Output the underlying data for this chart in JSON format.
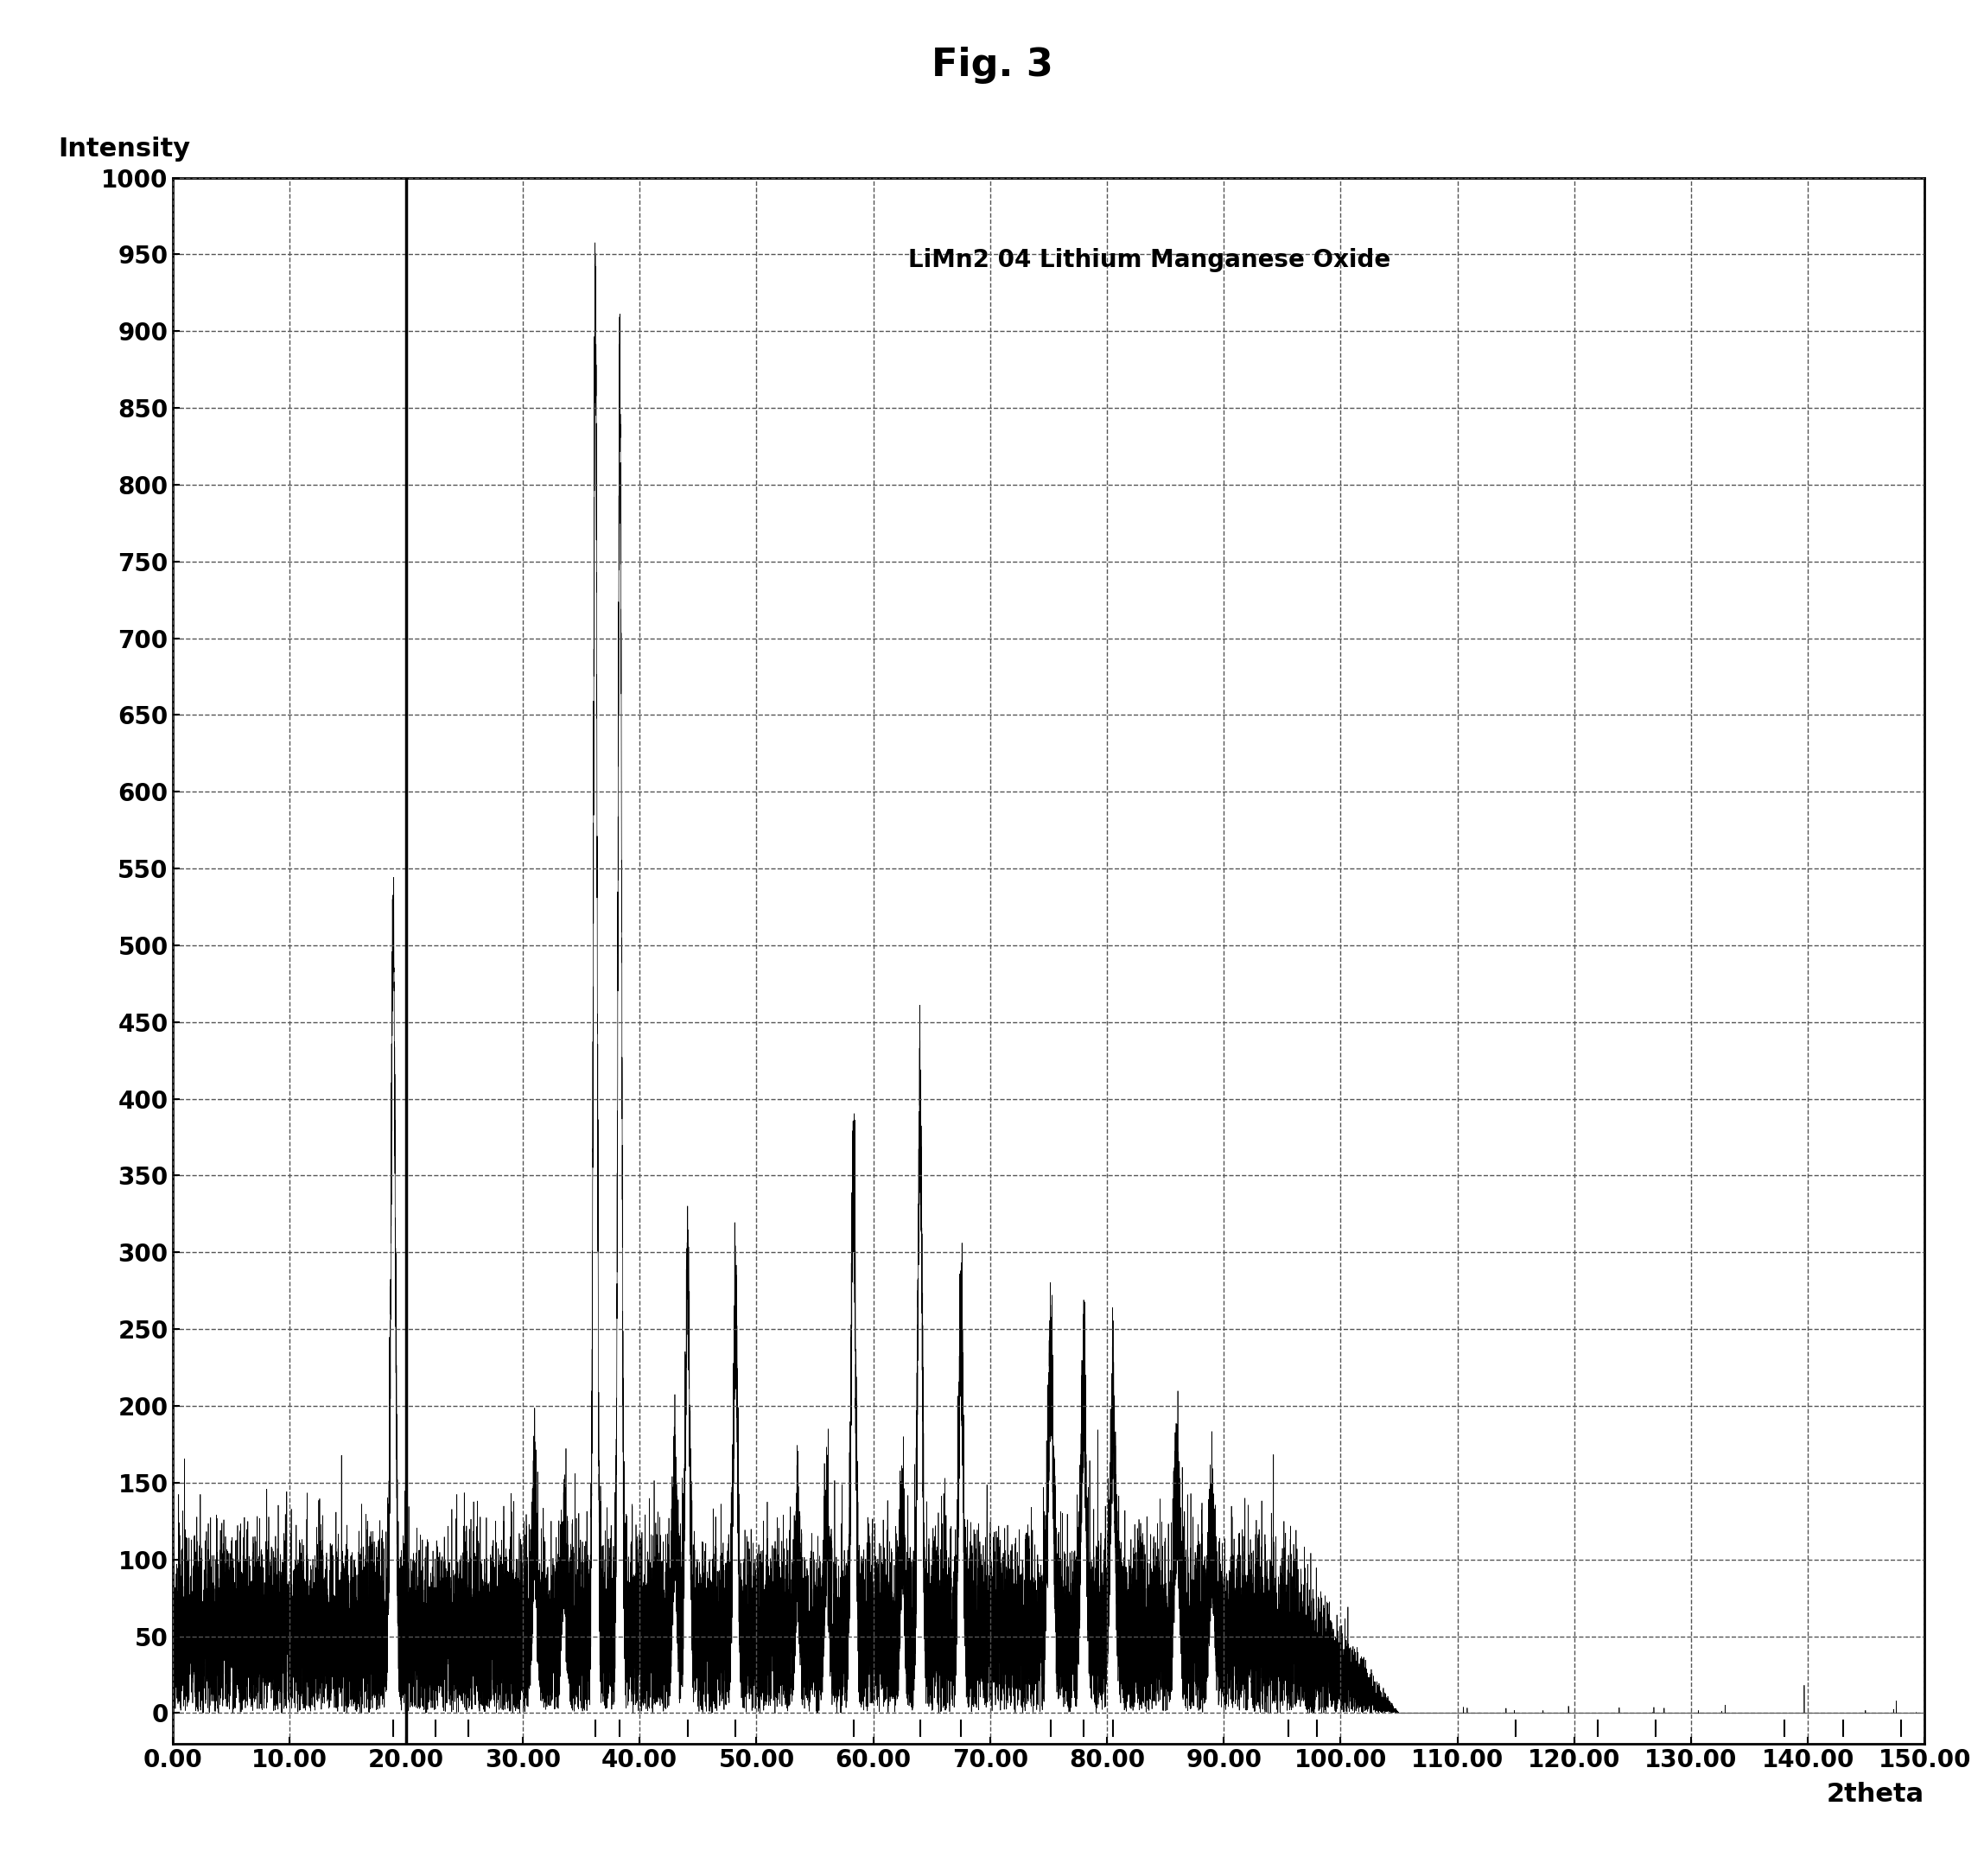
{
  "title": "Fig. 3",
  "ylabel": "Intensity",
  "xlabel": "2theta",
  "legend_text": "LiMn2 04 Lithium Manganese Oxide",
  "xlim": [
    0.0,
    150.0
  ],
  "ylim": [
    -20,
    1000
  ],
  "yticks": [
    0,
    50,
    100,
    150,
    200,
    250,
    300,
    350,
    400,
    450,
    500,
    550,
    600,
    650,
    700,
    750,
    800,
    850,
    900,
    950,
    1000
  ],
  "xticks": [
    0.0,
    10.0,
    20.0,
    30.0,
    40.0,
    50.0,
    60.0,
    70.0,
    80.0,
    90.0,
    100.0,
    110.0,
    120.0,
    130.0,
    140.0,
    150.0
  ],
  "background_color": "#ffffff",
  "line_color": "#000000",
  "title_fontsize": 32,
  "label_fontsize": 22,
  "tick_fontsize": 20,
  "legend_fontsize": 20,
  "vertical_line_x": 20.0,
  "seed": 42,
  "tick_marks": [
    18.9,
    22.5,
    25.3,
    36.2,
    38.3,
    44.1,
    48.2,
    58.3,
    64.0,
    67.5,
    75.2,
    78.0,
    80.5,
    95.5,
    98.0,
    115.0,
    122.0,
    127.0,
    138.0,
    143.0,
    148.0
  ]
}
